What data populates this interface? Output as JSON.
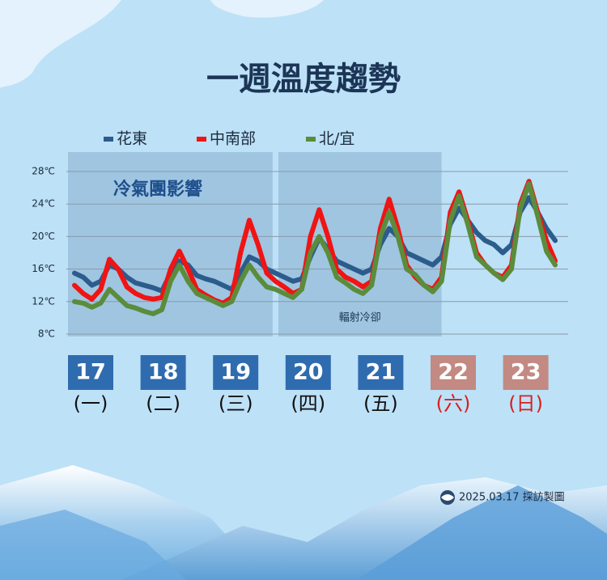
{
  "chart_data": {
    "type": "line",
    "title": "一週溫度趨勢",
    "x": [
      0,
      3,
      6,
      9,
      12,
      15,
      18,
      21,
      24,
      27,
      30,
      33,
      36,
      39,
      42,
      45,
      48,
      51,
      54,
      57,
      60,
      63,
      66,
      69,
      72,
      75,
      78,
      81,
      84,
      87,
      90,
      93,
      96,
      99,
      102,
      105,
      108,
      111,
      114,
      117,
      120,
      123,
      126,
      129,
      132,
      135,
      138,
      141,
      144,
      147,
      150,
      153,
      156,
      159,
      162,
      165
    ],
    "xlim": [
      0,
      165
    ],
    "ylim": [
      8,
      28
    ],
    "yticks": [
      {
        "value": 8,
        "label": "8℃"
      },
      {
        "value": 12,
        "label": "12℃"
      },
      {
        "value": 16,
        "label": "16℃"
      },
      {
        "value": 20,
        "label": "20℃"
      },
      {
        "value": 24,
        "label": "24℃"
      },
      {
        "value": 28,
        "label": "28℃"
      }
    ],
    "grid": true,
    "series": [
      {
        "name": "花東",
        "color": "#2b5c8c",
        "values": [
          15.5,
          15,
          14,
          14.5,
          16.5,
          16,
          15,
          14.3,
          14,
          13.7,
          13.3,
          15.5,
          17,
          16.5,
          15.2,
          14.8,
          14.5,
          14,
          13.5,
          15.5,
          17.5,
          17,
          16,
          15.5,
          15,
          14.5,
          14.8,
          17.5,
          19.8,
          18.5,
          17,
          16.5,
          16,
          15.5,
          16,
          19,
          21,
          20,
          18,
          17.5,
          17,
          16.5,
          17.5,
          21.5,
          23.5,
          22,
          20.5,
          19.5,
          19,
          18,
          19,
          23,
          24.8,
          23,
          21,
          19.5
        ]
      },
      {
        "name": "中南部",
        "color": "#f01414",
        "values": [
          14,
          13,
          12.3,
          13.5,
          17.2,
          16,
          13.8,
          13,
          12.5,
          12.3,
          12.5,
          16,
          18.2,
          16,
          13.5,
          12.8,
          12.2,
          11.8,
          12.5,
          18,
          22,
          19,
          15.5,
          14.5,
          13.8,
          13,
          13.5,
          20,
          23.3,
          20,
          16,
          15,
          14.5,
          13.8,
          14.5,
          21,
          24.6,
          21,
          16.5,
          15,
          14,
          13.5,
          15,
          23,
          25.5,
          22,
          18,
          16.5,
          15.5,
          15,
          16.5,
          24,
          26.8,
          23,
          19.5,
          17
        ]
      },
      {
        "name": "北/宜",
        "color": "#5b8c3c",
        "values": [
          12,
          11.8,
          11.3,
          11.8,
          13.5,
          12.5,
          11.5,
          11.2,
          10.8,
          10.5,
          11,
          14.5,
          16.5,
          14.5,
          13,
          12.5,
          12,
          11.5,
          12,
          14.5,
          16.5,
          15,
          13.8,
          13.5,
          13,
          12.5,
          13.5,
          18,
          20,
          18,
          15,
          14.3,
          13.5,
          13,
          14,
          20,
          23,
          20,
          16,
          15.3,
          14,
          13.2,
          14.5,
          22,
          25,
          21.5,
          17.5,
          16.5,
          15.5,
          14.7,
          16,
          23.5,
          26.5,
          22.5,
          18.2,
          16.5
        ]
      }
    ],
    "annotations": [
      {
        "text": "冷氣團影響",
        "x_range": [
          0,
          68
        ]
      },
      {
        "text": "輻射冷卻",
        "x_range": [
          70,
          126
        ]
      }
    ],
    "days": [
      {
        "date": "17",
        "weekday": "(一)",
        "weekend": false
      },
      {
        "date": "18",
        "weekday": "(二)",
        "weekend": false
      },
      {
        "date": "19",
        "weekday": "(三)",
        "weekend": false
      },
      {
        "date": "20",
        "weekday": "(四)",
        "weekend": false
      },
      {
        "date": "21",
        "weekday": "(五)",
        "weekend": false
      },
      {
        "date": "22",
        "weekday": "(六)",
        "weekend": true
      },
      {
        "date": "23",
        "weekday": "(日)",
        "weekend": true
      }
    ],
    "footer": "2025.03.17 採訪製圖"
  }
}
